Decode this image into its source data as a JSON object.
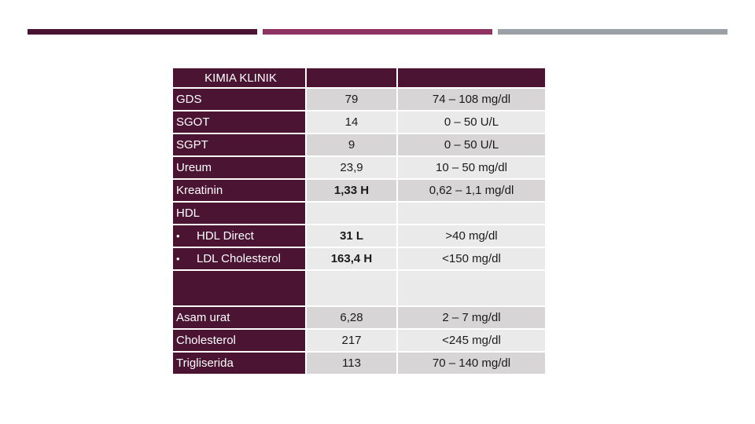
{
  "header": {
    "col1": "KIMIA KLINIK",
    "col2": "",
    "col3": ""
  },
  "rows": [
    {
      "name": "GDS",
      "value": "79",
      "range": "74 – 108 mg/dl"
    },
    {
      "name": "SGOT",
      "value": "14",
      "range": "0 – 50 U/L"
    },
    {
      "name": "SGPT",
      "value": "9",
      "range": "0 – 50 U/L"
    },
    {
      "name": "Ureum",
      "value": "23,9",
      "range": "10 – 50 mg/dl"
    },
    {
      "name": "Kreatinin",
      "value": "1,33 H",
      "range": "0,62 – 1,1 mg/dl"
    }
  ],
  "hdl": {
    "title": "HDL",
    "items": [
      {
        "name": "HDL Direct",
        "value": "31 L",
        "range": ">40 mg/dl"
      },
      {
        "name": "LDL Cholesterol",
        "value": "163,4 H",
        "range": "<150 mg/dl"
      }
    ],
    "bullet": "•"
  },
  "rows2": [
    {
      "name": "Asam urat",
      "value": "6,28",
      "range": "2 – 7 mg/dl"
    },
    {
      "name": "Cholesterol",
      "value": "217",
      "range": "<245 mg/dl"
    },
    {
      "name": "Trigliserida",
      "value": "113",
      "range": "70 – 140 mg/dl"
    }
  ],
  "colors": {
    "maroon": "#4c1433",
    "bar1": "#4a1332",
    "bar2": "#8e3264",
    "bar3": "#9aa0a6",
    "cell_dark": "#d7d5d6",
    "cell_light": "#ebeaea"
  }
}
